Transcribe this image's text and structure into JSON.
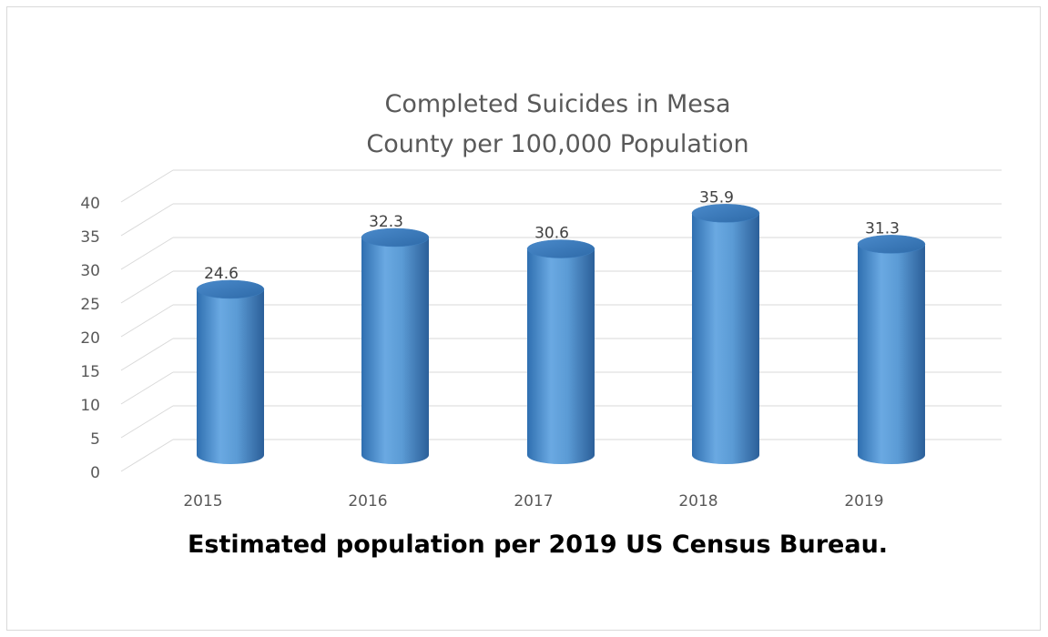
{
  "chart_data": {
    "type": "bar",
    "style": "3d-cylinder",
    "title_lines": [
      "Completed Suicides in Mesa",
      "County per 100,000 Population"
    ],
    "categories": [
      "2015",
      "2016",
      "2017",
      "2018",
      "2019"
    ],
    "values": [
      24.6,
      32.3,
      30.6,
      35.9,
      31.3
    ],
    "data_labels": [
      "24.6",
      "32.3",
      "30.6",
      "35.9",
      "31.3"
    ],
    "y_ticks": [
      "0",
      "5",
      "10",
      "15",
      "20",
      "25",
      "30",
      "35",
      "40"
    ],
    "ylim": [
      0,
      40
    ],
    "xlabel": "",
    "ylabel": "",
    "grid": true,
    "legend": "none",
    "colors": {
      "bar": "#5b9bd5",
      "bar_dark": "#2e6aa8",
      "bar_top": "#3a7cc0",
      "grid": "#d9d9d9",
      "text": "#595959"
    }
  },
  "caption": "Estimated population per 2019 US Census Bureau."
}
